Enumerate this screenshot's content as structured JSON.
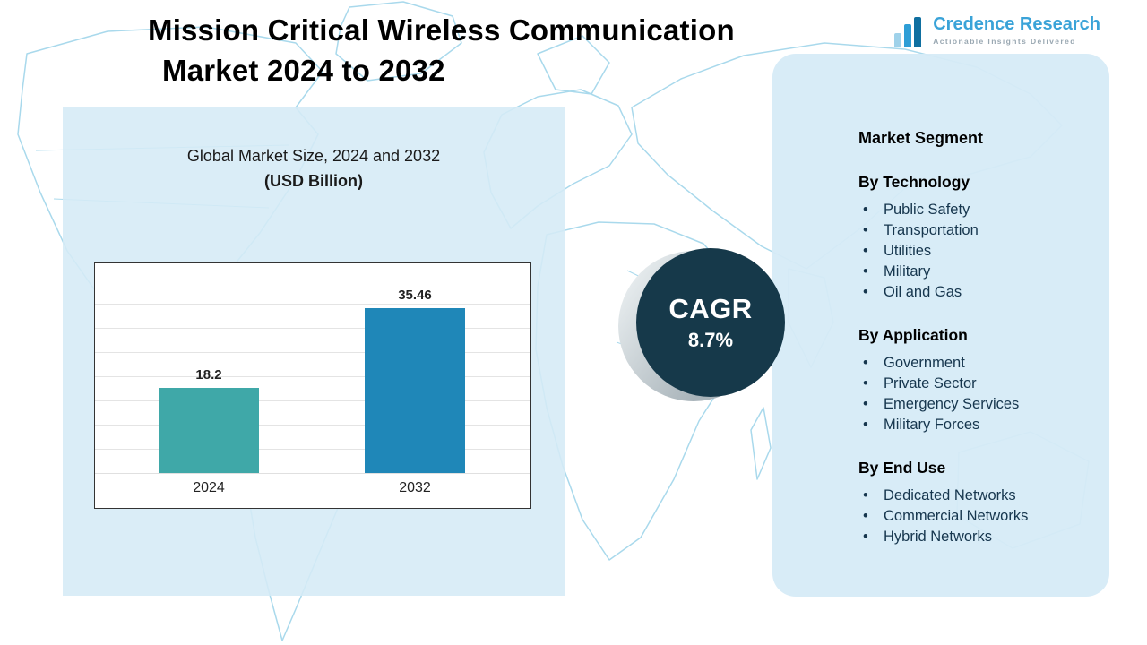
{
  "page": {
    "title_line1": "Mission Critical Wireless Communication",
    "title_line2": "Market  2024 to 2032"
  },
  "logo": {
    "name": "Credence Research",
    "tagline": "Actionable Insights Delivered"
  },
  "chart_panel": {
    "subtitle_line1": "Global Market Size, 2024 and 2032",
    "subtitle_line2": "(USD Billion)"
  },
  "chart_data": {
    "type": "bar",
    "title": "Global Market Size, 2024 and 2032 (USD Billion)",
    "categories": [
      "2024",
      "2032"
    ],
    "values": [
      18.2,
      35.46
    ],
    "value_labels": [
      "18.2",
      "35.46"
    ],
    "bar_colors": [
      "#3fa8a8",
      "#1f87b8"
    ],
    "xlabel": "",
    "ylabel": "",
    "ylim": [
      0,
      45
    ],
    "grid": true,
    "legend": "none"
  },
  "cagr": {
    "label": "CAGR",
    "value": "8.7%"
  },
  "segments": {
    "title": "Market Segment",
    "groups": [
      {
        "heading": "By Technology",
        "items": [
          "Public Safety",
          "Transportation",
          "Utilities",
          "Military",
          "Oil and Gas"
        ]
      },
      {
        "heading": "By Application",
        "items": [
          "Government",
          "Private Sector",
          "Emergency Services",
          "Military Forces"
        ]
      },
      {
        "heading": "By End Use",
        "items": [
          "Dedicated Networks",
          "Commercial Networks",
          "Hybrid Networks"
        ]
      }
    ]
  },
  "colors": {
    "panel_bg": "#d6ebf7",
    "bar_2024": "#3fa8a8",
    "bar_2032": "#1f87b8",
    "cagr_circle": "#16394a",
    "map_line": "#a9d9ec",
    "logo_blue": "#3aa3d8"
  }
}
